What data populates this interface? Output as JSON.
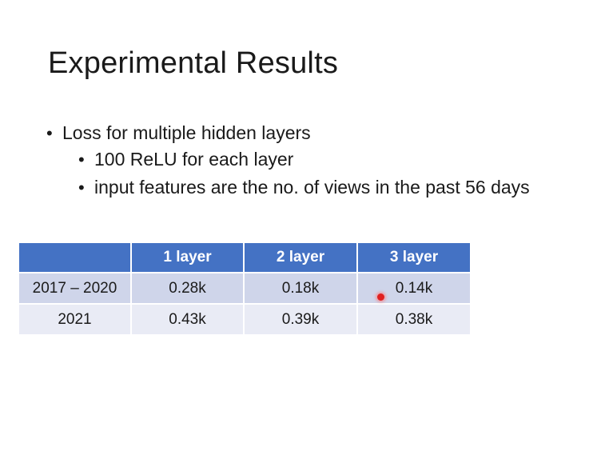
{
  "slide": {
    "title": "Experimental Results",
    "bullets": [
      {
        "level": 1,
        "text": "Loss for multiple hidden layers"
      },
      {
        "level": 2,
        "text": "100 ReLU for each layer"
      },
      {
        "level": 2,
        "text": "input features are the no. of views in the past 56 days"
      }
    ]
  },
  "table": {
    "headers": [
      "",
      "1 layer",
      "2 layer",
      "3 layer"
    ],
    "rows": [
      [
        "2017 – 2020",
        "0.28k",
        "0.18k",
        "0.14k"
      ],
      [
        "2021",
        "0.43k",
        "0.39k",
        "0.38k"
      ]
    ]
  },
  "colors": {
    "header_bg": "#4472c4",
    "row_dark": "#cfd5ea",
    "row_light": "#e9ebf5",
    "laser_pointer": "#e02020"
  }
}
